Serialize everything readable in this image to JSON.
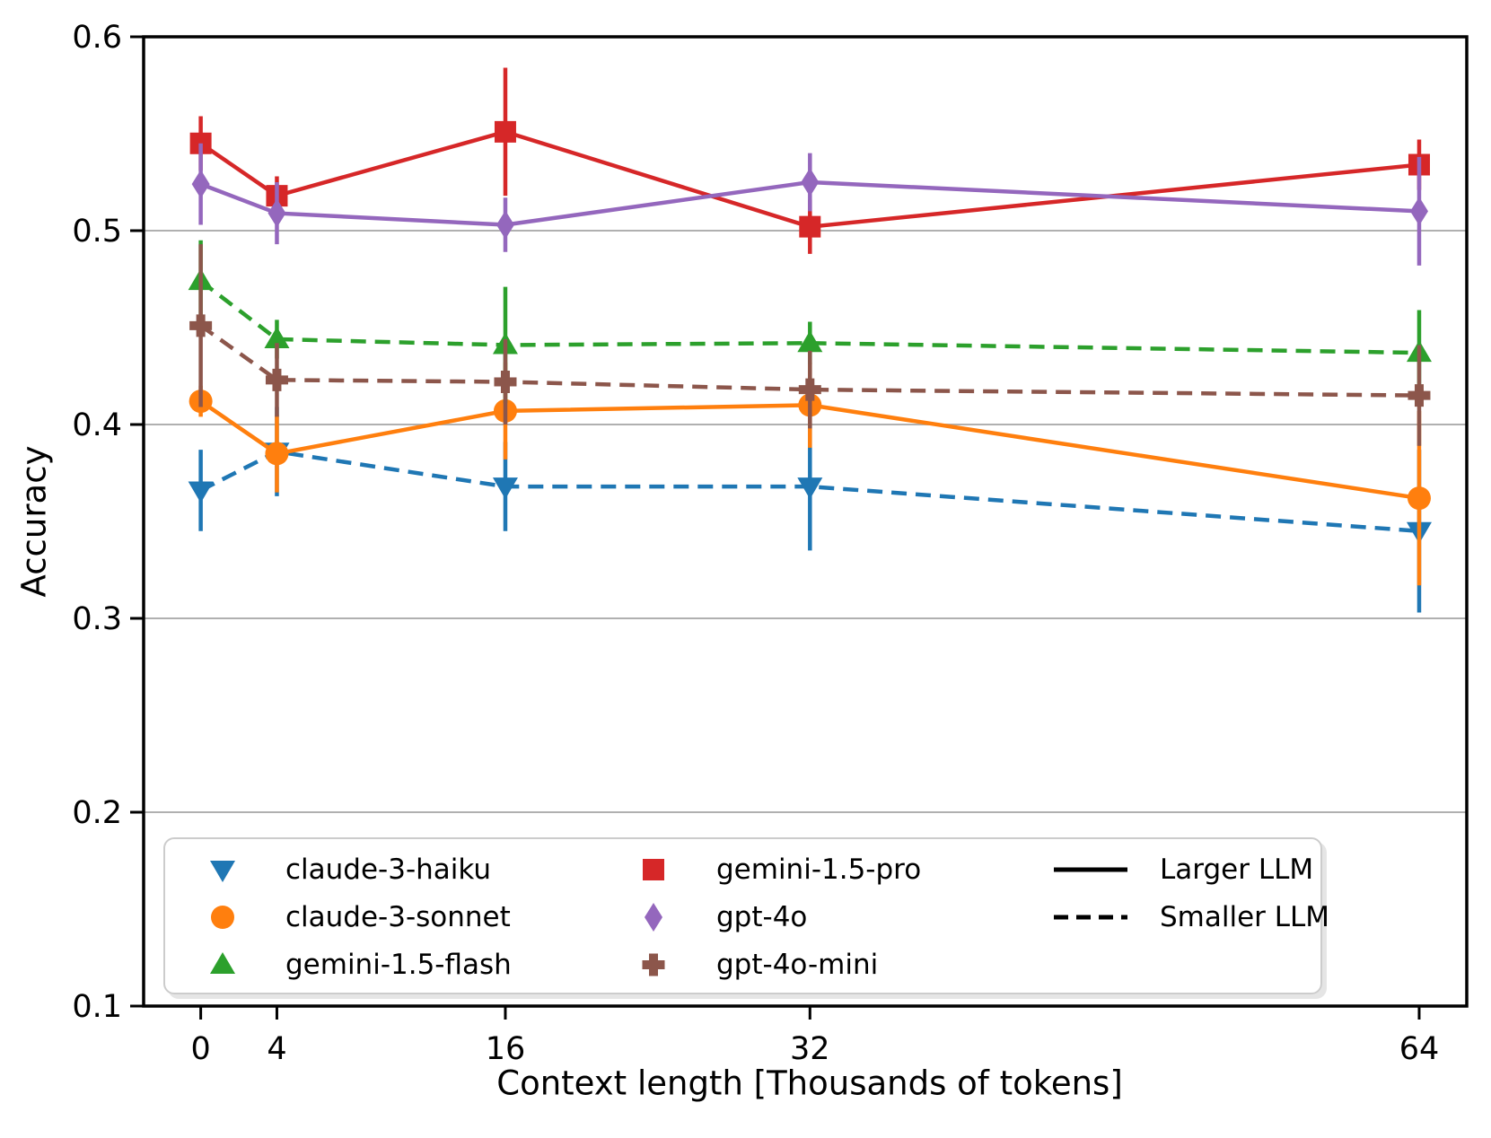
{
  "chart_data": {
    "type": "line",
    "title": "",
    "xlabel": "Context length [Thousands of tokens]",
    "ylabel": "Accuracy",
    "x": [
      0,
      4,
      16,
      32,
      64
    ],
    "x_ticklabels": [
      "0",
      "4",
      "16",
      "32",
      "64"
    ],
    "y_ticks": [
      0.1,
      0.2,
      0.3,
      0.4,
      0.5,
      0.6
    ],
    "y_ticklabels": [
      "0.1",
      "0.2",
      "0.3",
      "0.4",
      "0.5",
      "0.6"
    ],
    "xlim": [
      -3,
      66.5
    ],
    "ylim": [
      0.1,
      0.6
    ],
    "grid": "horizontal",
    "gridline_color": "#b0b0b0",
    "legend_position": "lower left",
    "series": [
      {
        "name": "claude-3-haiku",
        "group": "Smaller LLM",
        "color": "#1f77b4",
        "marker": "triangle-down",
        "linestyle": "dashed",
        "values": [
          0.366,
          0.386,
          0.368,
          0.368,
          0.345
        ],
        "errors": [
          0.021,
          0.023,
          0.023,
          0.033,
          0.042
        ]
      },
      {
        "name": "claude-3-sonnet",
        "group": "Larger LLM",
        "color": "#ff7f0e",
        "marker": "circle",
        "linestyle": "solid",
        "values": [
          0.412,
          0.385,
          0.407,
          0.41,
          0.362
        ],
        "errors": [
          0.008,
          0.02,
          0.025,
          0.022,
          0.045
        ]
      },
      {
        "name": "gemini-1.5-flash",
        "group": "Smaller LLM",
        "color": "#2ca02c",
        "marker": "triangle-up",
        "linestyle": "dashed",
        "values": [
          0.474,
          0.444,
          0.441,
          0.442,
          0.437
        ],
        "errors": [
          0.021,
          0.01,
          0.03,
          0.011,
          0.022
        ]
      },
      {
        "name": "gemini-1.5-pro",
        "group": "Larger LLM",
        "color": "#d62728",
        "marker": "square",
        "linestyle": "solid",
        "values": [
          0.545,
          0.518,
          0.551,
          0.502,
          0.534
        ],
        "errors": [
          0.014,
          0.01,
          0.033,
          0.014,
          0.013
        ]
      },
      {
        "name": "gpt-4o",
        "group": "Larger LLM",
        "color": "#9467bd",
        "marker": "thin-diamond",
        "linestyle": "solid",
        "values": [
          0.524,
          0.509,
          0.503,
          0.525,
          0.51
        ],
        "errors": [
          0.021,
          0.016,
          0.014,
          0.015,
          0.028
        ]
      },
      {
        "name": "gpt-4o-mini",
        "group": "Smaller LLM",
        "color": "#8c564b",
        "marker": "plus",
        "linestyle": "dashed",
        "values": [
          0.451,
          0.423,
          0.422,
          0.418,
          0.415
        ],
        "errors": [
          0.042,
          0.019,
          0.022,
          0.02,
          0.026
        ]
      }
    ],
    "legend": {
      "style_entries": [
        {
          "label": "Larger LLM",
          "linestyle": "solid",
          "color": "#000000"
        },
        {
          "label": "Smaller LLM",
          "linestyle": "dashed",
          "color": "#000000"
        }
      ]
    }
  }
}
